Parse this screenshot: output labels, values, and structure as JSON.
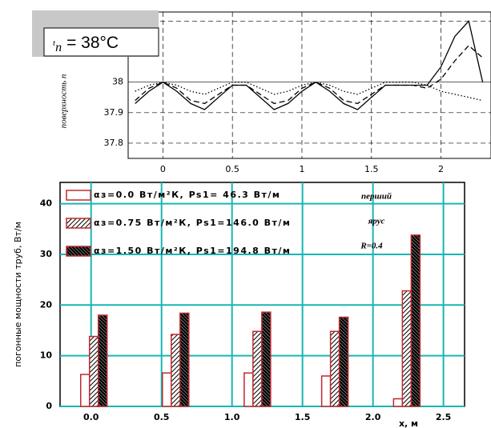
{
  "chart_data": [
    {
      "type": "line",
      "ylabel": "поверхность п",
      "annotation": {
        "symbol": "t",
        "subscript": "n",
        "text": "= 38°C"
      },
      "x": [
        -0.2,
        -0.1,
        0,
        0.1,
        0.2,
        0.3,
        0.4,
        0.5,
        0.6,
        0.7,
        0.8,
        0.9,
        1.0,
        1.1,
        1.2,
        1.3,
        1.4,
        1.5,
        1.6,
        1.7,
        1.8,
        1.9,
        2.0,
        2.1,
        2.2,
        2.3
      ],
      "series": [
        {
          "style": "solid",
          "color": "#000000",
          "values": [
            37.93,
            37.97,
            38.0,
            37.97,
            37.93,
            37.91,
            37.95,
            37.99,
            37.99,
            37.95,
            37.91,
            37.93,
            37.97,
            38.0,
            37.97,
            37.93,
            37.91,
            37.95,
            37.99,
            37.99,
            37.99,
            37.99,
            38.05,
            38.15,
            38.2,
            38.0
          ]
        },
        {
          "style": "dashed",
          "color": "#000000",
          "values": [
            37.94,
            37.98,
            38.0,
            37.98,
            37.94,
            37.93,
            37.96,
            37.99,
            37.99,
            37.96,
            37.93,
            37.94,
            37.98,
            38.0,
            37.98,
            37.94,
            37.93,
            37.96,
            37.99,
            37.99,
            37.99,
            37.98,
            38.01,
            38.07,
            38.12,
            38.08
          ]
        },
        {
          "style": "dotted",
          "color": "#000000",
          "values": [
            37.97,
            37.99,
            38.0,
            37.99,
            37.97,
            37.96,
            37.98,
            38.0,
            38.0,
            37.98,
            37.96,
            37.97,
            37.99,
            38.0,
            37.99,
            37.97,
            37.96,
            37.98,
            38.0,
            38.0,
            38.0,
            37.99,
            37.97,
            37.96,
            37.95,
            37.94
          ]
        }
      ],
      "xlim": [
        -0.25,
        2.36
      ],
      "ylim": [
        37.75,
        38.23
      ],
      "xticks": [
        0,
        0.5,
        1,
        1.5,
        2
      ],
      "yticks": [
        37.8,
        37.9,
        38,
        38.2
      ],
      "grid": true
    },
    {
      "type": "bar",
      "xlabel": "x, м",
      "ylabel": "погонные мощности труб, Вт/м",
      "annotation": [
        "перший",
        "ярус",
        "R=0.4"
      ],
      "x": [
        0.02,
        0.6,
        1.18,
        1.73,
        2.24
      ],
      "series": [
        {
          "name": "αз=0.0  Вт/м²К, Ps1= 46.3 Вт/м",
          "pattern": "empty",
          "color": "#c0282d",
          "values": [
            6.3,
            6.6,
            6.6,
            6.0,
            1.5
          ]
        },
        {
          "name": "αз=0.75 Вт/м²К, Ps1=146.0 Вт/м",
          "pattern": "hatch",
          "color": "#c0282d",
          "values": [
            13.8,
            14.2,
            14.8,
            14.8,
            22.8
          ]
        },
        {
          "name": "αз=1.50 Вт/м²К, Ps1=194.8 Вт/м",
          "pattern": "dense",
          "color": "#c0282d",
          "values": [
            18.0,
            18.4,
            18.6,
            17.6,
            33.8
          ]
        }
      ],
      "xlim": [
        -0.22,
        2.65
      ],
      "ylim": [
        0,
        44.2
      ],
      "xticks": [
        {
          "value": 0,
          "label": "0.0"
        },
        {
          "value": 0.5,
          "label": "0.5"
        },
        {
          "value": 1,
          "label": "1.0"
        },
        {
          "value": 1.5,
          "label": "1.5"
        },
        {
          "value": 2,
          "label": "2.0"
        },
        {
          "value": 2.5,
          "label": "2.5"
        }
      ],
      "yticks": [
        0,
        10,
        20,
        30,
        40
      ],
      "grid": true,
      "grid_color": "#19b5b5"
    }
  ]
}
